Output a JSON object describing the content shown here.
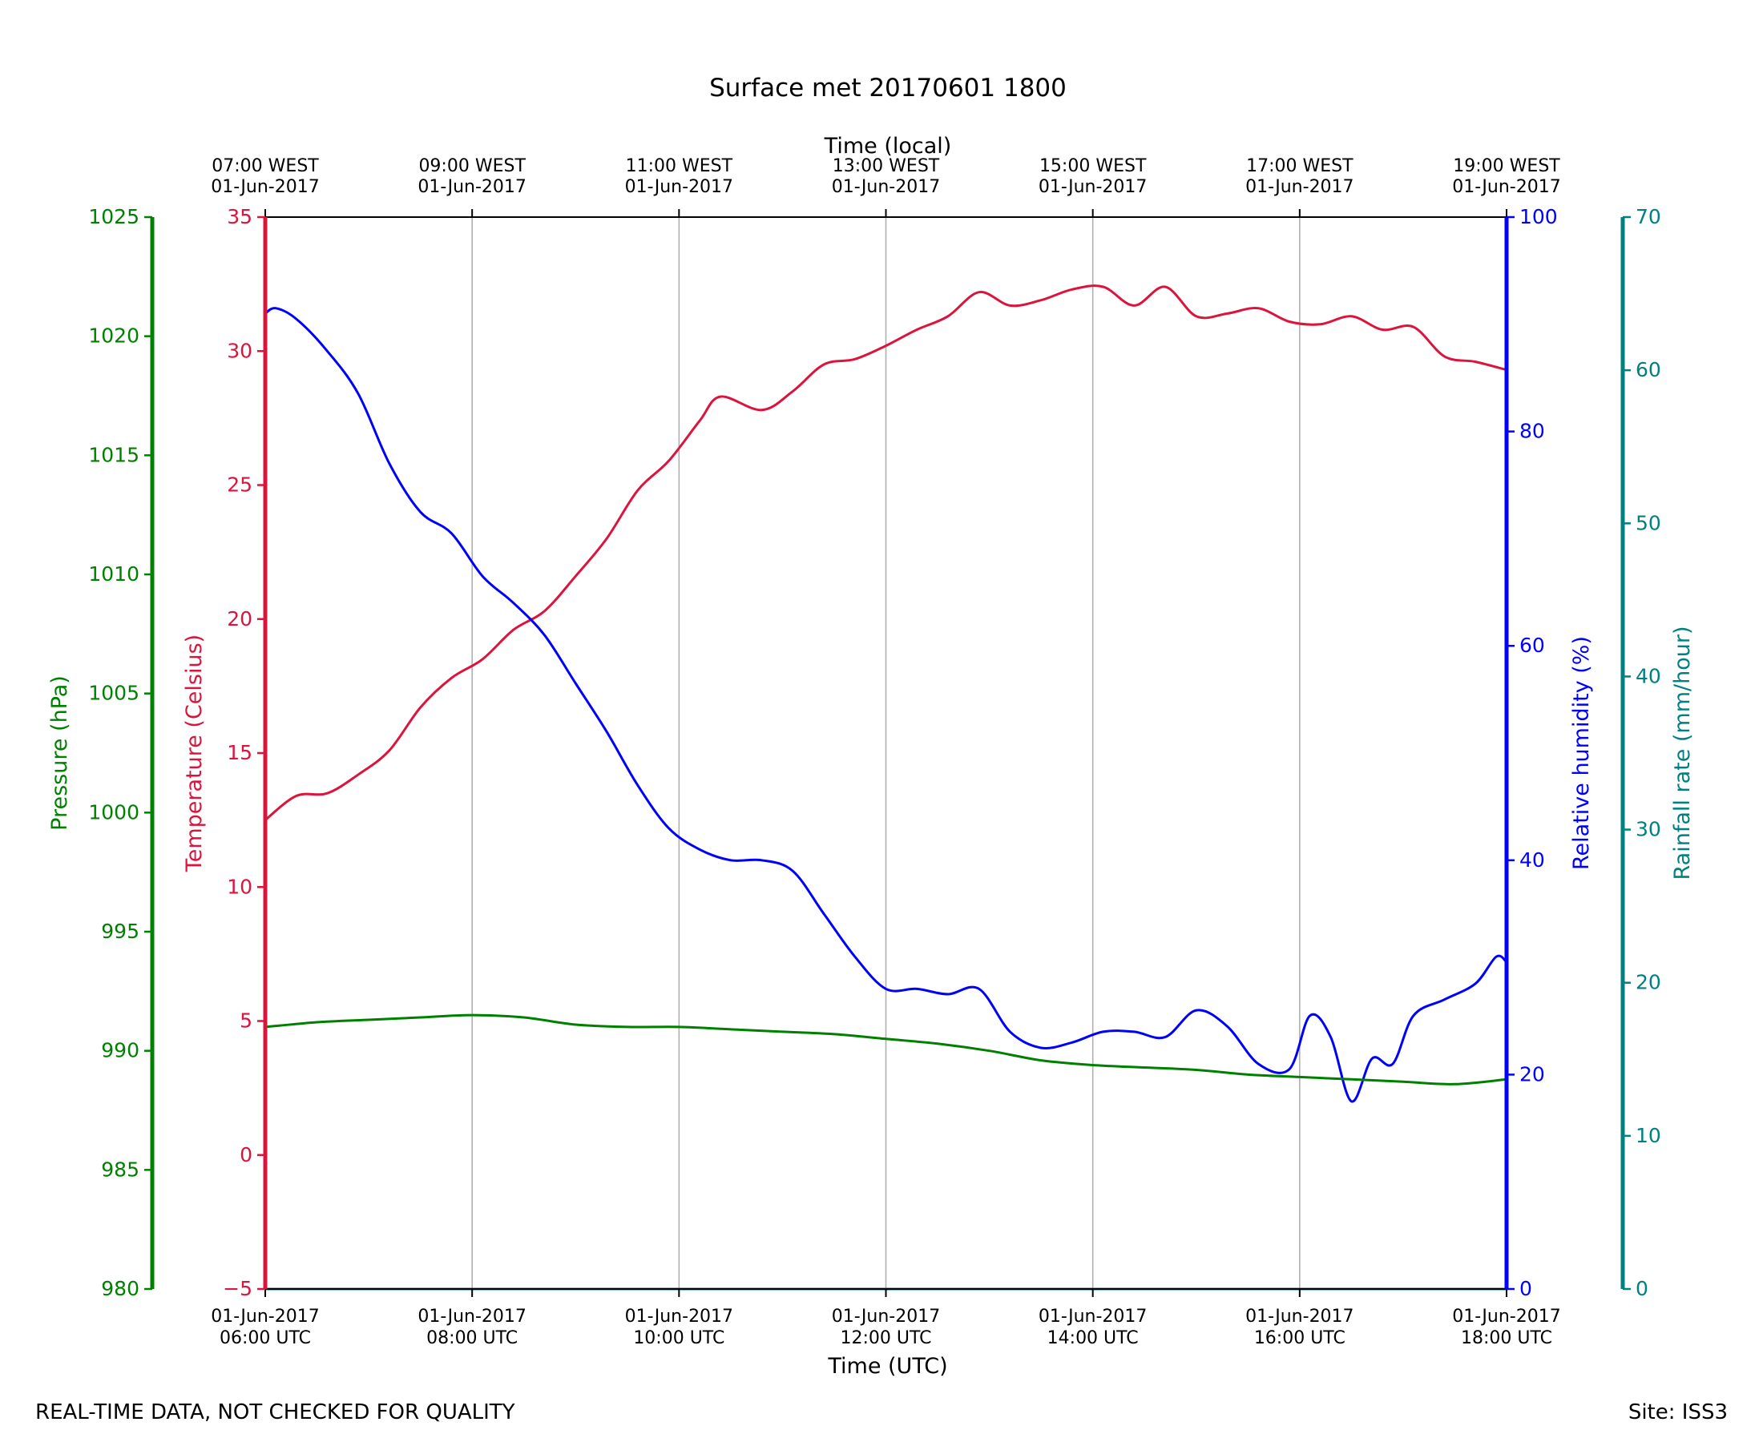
{
  "chart_data": {
    "type": "line",
    "title": "Surface met 20170601 1800",
    "xlabel": "Time (UTC)",
    "x2label": "Time (local)",
    "x_range_utc": [
      "2017-06-01 06:00",
      "2017-06-01 18:00"
    ],
    "x_ticks_utc": [
      {
        "line1": "01-Jun-2017",
        "line2": "06:00 UTC"
      },
      {
        "line1": "01-Jun-2017",
        "line2": "08:00 UTC"
      },
      {
        "line1": "01-Jun-2017",
        "line2": "10:00 UTC"
      },
      {
        "line1": "01-Jun-2017",
        "line2": "12:00 UTC"
      },
      {
        "line1": "01-Jun-2017",
        "line2": "14:00 UTC"
      },
      {
        "line1": "01-Jun-2017",
        "line2": "16:00 UTC"
      },
      {
        "line1": "01-Jun-2017",
        "line2": "18:00 UTC"
      }
    ],
    "x_ticks_local": [
      {
        "line1": "07:00 WEST",
        "line2": "01-Jun-2017"
      },
      {
        "line1": "09:00 WEST",
        "line2": "01-Jun-2017"
      },
      {
        "line1": "11:00 WEST",
        "line2": "01-Jun-2017"
      },
      {
        "line1": "13:00 WEST",
        "line2": "01-Jun-2017"
      },
      {
        "line1": "15:00 WEST",
        "line2": "01-Jun-2017"
      },
      {
        "line1": "17:00 WEST",
        "line2": "01-Jun-2017"
      },
      {
        "line1": "19:00 WEST",
        "line2": "01-Jun-2017"
      }
    ],
    "grid": "vertical",
    "axes": {
      "pressure": {
        "label": "Pressure (hPa)",
        "ylim": [
          980,
          1025
        ],
        "ticks": [
          980,
          985,
          990,
          995,
          1000,
          1005,
          1010,
          1015,
          1020,
          1025
        ],
        "color": "#008000",
        "side": "left-outer"
      },
      "temperature": {
        "label": "Temperature (Celsius)",
        "ylim": [
          -5,
          35
        ],
        "ticks": [
          "−5",
          "0",
          "5",
          "10",
          "15",
          "20",
          "25",
          "30",
          "35"
        ],
        "tick_values": [
          -5,
          0,
          5,
          10,
          15,
          20,
          25,
          30,
          35
        ],
        "color": "#dc143c",
        "side": "left-inner"
      },
      "humidity": {
        "label": "Relative humidity (%)",
        "ylim": [
          0,
          100
        ],
        "ticks": [
          0,
          20,
          40,
          60,
          80,
          100
        ],
        "color": "#0000ff",
        "side": "right-inner"
      },
      "rainfall": {
        "label": "Rainfall rate (mm/hour)",
        "ylim": [
          0,
          70
        ],
        "ticks": [
          0,
          10,
          20,
          30,
          40,
          50,
          60,
          70
        ],
        "color": "#008080",
        "side": "right-outer"
      }
    },
    "series": [
      {
        "axis": "temperature",
        "color": "#dc143c",
        "x_hours_utc": [
          6.0,
          6.3,
          6.6,
          6.9,
          7.2,
          7.5,
          7.8,
          8.1,
          8.4,
          8.7,
          9.0,
          9.3,
          9.6,
          9.9,
          10.2,
          10.4,
          10.8,
          11.1,
          11.4,
          11.7,
          12.0,
          12.3,
          12.6,
          12.9,
          13.2,
          13.5,
          13.8,
          14.1,
          14.4,
          14.7,
          15.0,
          15.3,
          15.6,
          15.9,
          16.2,
          16.5,
          16.8,
          17.1,
          17.4,
          17.7,
          18.0
        ],
        "values": [
          12.5,
          13.4,
          13.5,
          14.2,
          15.1,
          16.7,
          17.8,
          18.5,
          19.6,
          20.3,
          21.6,
          23.0,
          24.8,
          25.9,
          27.4,
          28.3,
          27.8,
          28.5,
          29.5,
          29.7,
          30.2,
          30.8,
          31.3,
          32.2,
          31.7,
          31.9,
          32.3,
          32.4,
          31.7,
          32.4,
          31.3,
          31.4,
          31.6,
          31.1,
          31.0,
          31.3,
          30.8,
          30.9,
          29.8,
          29.6,
          29.3
        ]
      },
      {
        "axis": "humidity",
        "color": "#0000ff",
        "x_hours_utc": [
          6.0,
          6.1,
          6.3,
          6.6,
          6.9,
          7.2,
          7.5,
          7.8,
          8.1,
          8.4,
          8.7,
          9.0,
          9.3,
          9.6,
          9.9,
          10.2,
          10.5,
          10.8,
          11.1,
          11.4,
          11.7,
          12.0,
          12.3,
          12.6,
          12.9,
          13.2,
          13.5,
          13.8,
          14.1,
          14.4,
          14.7,
          15.0,
          15.3,
          15.6,
          15.9,
          16.1,
          16.3,
          16.5,
          16.7,
          16.9,
          17.1,
          17.4,
          17.7,
          17.9,
          18.0
        ],
        "values": [
          91,
          91.5,
          90.5,
          87.5,
          83.5,
          77,
          72.5,
          70.5,
          66.5,
          64,
          61,
          56.5,
          52,
          47,
          43,
          41,
          40,
          40,
          39,
          35,
          31,
          28,
          28,
          27.5,
          28,
          24,
          22.5,
          23,
          24,
          24,
          23.5,
          26,
          24.5,
          21,
          20.5,
          25.5,
          23.5,
          17.5,
          21.5,
          21,
          25.5,
          27,
          28.5,
          31,
          30.5
        ]
      },
      {
        "axis": "pressure",
        "color": "#008000",
        "x_hours_utc": [
          6.0,
          6.5,
          7.0,
          7.5,
          8.0,
          8.5,
          9.0,
          9.5,
          10.0,
          10.5,
          11.0,
          11.5,
          12.0,
          12.5,
          13.0,
          13.5,
          14.0,
          14.5,
          15.0,
          15.5,
          16.0,
          16.5,
          17.0,
          17.5,
          18.0
        ],
        "values": [
          991.0,
          991.2,
          991.3,
          991.4,
          991.5,
          991.4,
          991.1,
          991.0,
          991.0,
          990.9,
          990.8,
          990.7,
          990.5,
          990.3,
          990.0,
          989.6,
          989.4,
          989.3,
          989.2,
          989.0,
          988.9,
          988.8,
          988.7,
          988.6,
          988.8
        ]
      },
      {
        "axis": "rainfall",
        "color": "#008080",
        "x_hours_utc": [
          6.0,
          18.0
        ],
        "values": [
          0.0,
          0.0
        ]
      }
    ]
  },
  "footer": {
    "left": "REAL-TIME DATA, NOT CHECKED FOR QUALITY",
    "right": "Site: ISS3"
  }
}
